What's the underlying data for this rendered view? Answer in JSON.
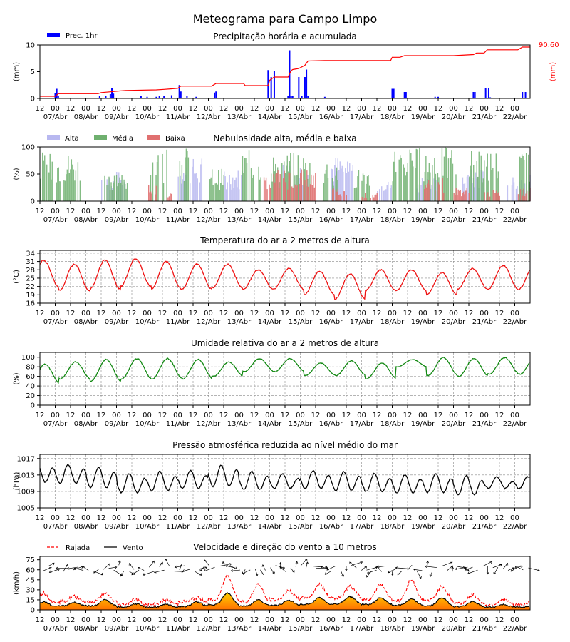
{
  "page": {
    "title": "Meteograma para Campo Limpo"
  },
  "x_axis": {
    "hour_labels": [
      "12",
      "00",
      "12",
      "00",
      "12",
      "00",
      "12",
      "00",
      "12",
      "00",
      "12",
      "00",
      "12",
      "00",
      "12",
      "00",
      "12",
      "00",
      "12",
      "00",
      "12",
      "00",
      "12",
      "00",
      "12",
      "00",
      "12",
      "00",
      "12",
      "00",
      "12",
      "00"
    ],
    "day_labels": [
      "07/Abr",
      "08/Abr",
      "09/Abr",
      "10/Abr",
      "11/Abr",
      "12/Abr",
      "13/Abr",
      "14/Abr",
      "15/Abr",
      "16/Abr",
      "17/Abr",
      "18/Abr",
      "19/Abr",
      "20/Abr",
      "21/Abr",
      "22/Abr"
    ]
  },
  "chart_data": [
    {
      "id": "precip",
      "type": "bar",
      "title": "Precipitação horária e acumulada",
      "ylabel": "(mm)",
      "ylabel_right": "(mm)",
      "ylim": [
        0,
        10
      ],
      "yticks": [
        "0",
        "5",
        "10"
      ],
      "legend": [
        "Prec. 1hr"
      ],
      "accum_final_label": "90.60",
      "colors": {
        "bars": "#0000ff",
        "accum": "#ff0000"
      },
      "hourly_bars": [
        [
          1.0,
          1.0
        ],
        [
          1.1,
          1.8
        ],
        [
          1.2,
          0.5
        ],
        [
          3.9,
          0.4
        ],
        [
          4.3,
          0.5
        ],
        [
          4.6,
          0.8
        ],
        [
          4.7,
          1.9
        ],
        [
          4.8,
          0.9
        ],
        [
          6.6,
          0.4
        ],
        [
          7.0,
          0.3
        ],
        [
          7.6,
          0.3
        ],
        [
          7.8,
          0.5
        ],
        [
          8.1,
          0.4
        ],
        [
          8.6,
          0.6
        ],
        [
          9.1,
          2.5
        ],
        [
          9.2,
          1.3
        ],
        [
          9.6,
          0.4
        ],
        [
          10.2,
          0.3
        ],
        [
          11.4,
          1.1
        ],
        [
          11.5,
          1.3
        ],
        [
          14.9,
          5.3
        ],
        [
          15.1,
          4.0
        ],
        [
          15.3,
          5.2
        ],
        [
          16.2,
          0.5
        ],
        [
          16.3,
          9.0
        ],
        [
          16.4,
          0.4
        ],
        [
          16.5,
          0.4
        ],
        [
          16.9,
          4.0
        ],
        [
          17.1,
          0.4
        ],
        [
          17.3,
          4.0
        ],
        [
          17.4,
          5.4
        ],
        [
          17.5,
          0.4
        ],
        [
          18.6,
          0.3
        ],
        [
          23.0,
          1.8
        ],
        [
          23.1,
          1.8
        ],
        [
          23.8,
          1.2
        ],
        [
          23.9,
          1.2
        ],
        [
          25.8,
          0.3
        ],
        [
          26.0,
          0.3
        ],
        [
          28.3,
          1.2
        ],
        [
          28.4,
          1.2
        ],
        [
          29.1,
          2.0
        ],
        [
          29.3,
          2.0
        ],
        [
          29.4,
          0.2
        ],
        [
          31.5,
          1.2
        ],
        [
          31.7,
          1.2
        ]
      ],
      "accumulated": [
        [
          0,
          0.4
        ],
        [
          1.0,
          0.4
        ],
        [
          1.2,
          0.9
        ],
        [
          3.8,
          0.9
        ],
        [
          4.0,
          1.1
        ],
        [
          4.8,
          1.3
        ],
        [
          5.2,
          1.4
        ],
        [
          5.6,
          1.5
        ],
        [
          7.6,
          1.6
        ],
        [
          8.1,
          1.7
        ],
        [
          8.6,
          1.8
        ],
        [
          9.0,
          1.9
        ],
        [
          9.2,
          2.3
        ],
        [
          11.2,
          2.3
        ],
        [
          11.5,
          2.8
        ],
        [
          13.3,
          2.8
        ],
        [
          13.4,
          2.4
        ],
        [
          14.9,
          2.4
        ],
        [
          15.0,
          3.4
        ],
        [
          15.3,
          4.0
        ],
        [
          16.2,
          4.0
        ],
        [
          16.4,
          5.2
        ],
        [
          16.5,
          5.4
        ],
        [
          16.9,
          5.6
        ],
        [
          17.3,
          6.2
        ],
        [
          17.5,
          7.0
        ],
        [
          18.6,
          7.1
        ],
        [
          20.0,
          7.1
        ],
        [
          22.9,
          7.1
        ],
        [
          23.0,
          7.7
        ],
        [
          23.5,
          7.7
        ],
        [
          23.8,
          8.0
        ],
        [
          25.0,
          8.0
        ],
        [
          27.0,
          8.0
        ],
        [
          28.3,
          8.2
        ],
        [
          28.5,
          8.5
        ],
        [
          29.0,
          8.5
        ],
        [
          29.2,
          9.1
        ],
        [
          31.2,
          9.1
        ],
        [
          31.5,
          9.6
        ],
        [
          32,
          9.6
        ]
      ]
    },
    {
      "id": "clouds",
      "type": "bar",
      "title": "Nebulosidade alta, média e baixa",
      "ylabel": "(%)",
      "ylim": [
        0,
        100
      ],
      "yticks": [
        "0",
        "50",
        "100"
      ],
      "legend": [
        "Alta",
        "Média",
        "Baixa"
      ],
      "colors": {
        "alta": "#b8b8f0",
        "media": "#6fb06f",
        "baixa": "#e07070"
      },
      "high_blocks": [
        [
          4.0,
          5.6,
          55
        ],
        [
          9.0,
          10.6,
          80
        ],
        [
          12.0,
          13.2,
          60
        ],
        [
          15.5,
          17.5,
          75
        ],
        [
          19.0,
          20.5,
          85
        ],
        [
          22.0,
          23.0,
          40
        ],
        [
          24.5,
          26.0,
          45
        ],
        [
          27.5,
          29.0,
          60
        ],
        [
          30.5,
          32.0,
          50
        ]
      ],
      "mid_blocks": [
        [
          0.0,
          2.6,
          90
        ],
        [
          4.2,
          5.8,
          55
        ],
        [
          7.2,
          8.5,
          95
        ],
        [
          9.1,
          9.8,
          100
        ],
        [
          11.0,
          12.0,
          60
        ],
        [
          13.2,
          14.6,
          95
        ],
        [
          15.0,
          17.8,
          90
        ],
        [
          18.5,
          19.5,
          80
        ],
        [
          20.5,
          21.5,
          60
        ],
        [
          23.0,
          27.2,
          100
        ],
        [
          28.0,
          30.0,
          95
        ],
        [
          31.3,
          32.0,
          90
        ]
      ],
      "low_blocks": [
        [
          7.0,
          7.6,
          35
        ],
        [
          8.2,
          8.6,
          15
        ],
        [
          14.6,
          18.0,
          60
        ],
        [
          19.0,
          20.0,
          25
        ],
        [
          21.0,
          22.0,
          15
        ],
        [
          25.0,
          26.4,
          45
        ],
        [
          27.0,
          28.0,
          25
        ],
        [
          29.0,
          30.0,
          20
        ],
        [
          31.2,
          32.0,
          25
        ]
      ]
    },
    {
      "id": "temperature",
      "type": "line",
      "title": "Temperatura do ar a 2 metros de altura",
      "ylabel": "(°C)",
      "ylim": [
        16,
        35
      ],
      "yticks": [
        "16",
        "19",
        "22",
        "25",
        "28",
        "31",
        "34"
      ],
      "color": "#ee1111",
      "daily": [
        [
          31.5,
          21.8
        ],
        [
          30.0,
          20.5
        ],
        [
          31.5,
          21.0
        ],
        [
          32.0,
          22.0
        ],
        [
          31.0,
          21.0
        ],
        [
          30.0,
          21.0
        ],
        [
          30.0,
          21.5
        ],
        [
          28.0,
          21.0
        ],
        [
          28.5,
          21.0
        ],
        [
          27.5,
          19.0
        ],
        [
          26.5,
          17.5
        ],
        [
          28.0,
          20.5
        ],
        [
          28.0,
          20.5
        ],
        [
          27.0,
          19.0
        ],
        [
          28.5,
          21.0
        ],
        [
          29.5,
          21.0
        ]
      ]
    },
    {
      "id": "humidity",
      "type": "line",
      "title": "Umidade relativa do ar a 2 metros de altura",
      "ylabel": "(%)",
      "ylim": [
        0,
        110
      ],
      "yticks": [
        "0",
        "20",
        "40",
        "60",
        "80",
        "100"
      ],
      "color": "#118811",
      "daily": [
        [
          45,
          85
        ],
        [
          55,
          90
        ],
        [
          50,
          95
        ],
        [
          55,
          97
        ],
        [
          55,
          97
        ],
        [
          55,
          95
        ],
        [
          60,
          90
        ],
        [
          70,
          97
        ],
        [
          70,
          97
        ],
        [
          62,
          88
        ],
        [
          62,
          92
        ],
        [
          55,
          88
        ],
        [
          80,
          95
        ],
        [
          62,
          99
        ],
        [
          60,
          97
        ],
        [
          65,
          99
        ]
      ]
    },
    {
      "id": "pressure",
      "type": "line",
      "title": "Pressão atmosférica reduzida ao nível médio do mar",
      "ylabel": "(hPa)",
      "ylim": [
        1005,
        1018
      ],
      "yticks": [
        "1005",
        "1009",
        "1013",
        "1017"
      ],
      "color": "#000000",
      "daily": [
        [
          1016.5,
          1012.0,
          1014.0,
          1010.5
        ],
        [
          1016.0,
          1012.0,
          1014.0,
          1010.0
        ],
        [
          1015.5,
          1011.0,
          1013.0,
          1009.0
        ],
        [
          1013.5,
          1009.5,
          1012.0,
          1008.0
        ],
        [
          1014.0,
          1010.0,
          1012.5,
          1008.5
        ],
        [
          1014.5,
          1010.5,
          1012.5,
          1009.0
        ],
        [
          1016.5,
          1011.0,
          1013.0,
          1009.5
        ],
        [
          1014.0,
          1010.0,
          1012.5,
          1009.0
        ],
        [
          1013.5,
          1010.0,
          1012.0,
          1009.5
        ],
        [
          1014.5,
          1010.5,
          1012.5,
          1009.0
        ],
        [
          1014.0,
          1010.0,
          1012.5,
          1008.5
        ],
        [
          1013.5,
          1009.5,
          1012.0,
          1008.5
        ],
        [
          1013.0,
          1009.0,
          1012.0,
          1008.5
        ],
        [
          1013.5,
          1009.5,
          1012.0,
          1008.0
        ],
        [
          1013.0,
          1009.0,
          1011.5,
          1007.5
        ],
        [
          1012.5,
          1009.5,
          1011.5,
          1010.0
        ]
      ]
    },
    {
      "id": "wind",
      "type": "area",
      "title": "Velocidade e direção do vento a 10 metros",
      "ylabel": "(km/h)",
      "ylim": [
        0,
        80
      ],
      "yticks": [
        "0",
        "15",
        "30",
        "45",
        "60",
        "75"
      ],
      "legend": [
        "Rajada",
        "Vento"
      ],
      "colors": {
        "rajada": "#ff0000",
        "vento": "#000000",
        "fill_top": "#ffd000",
        "fill_bottom": "#ff8000"
      },
      "daily_wind": [
        [
          5,
          12
        ],
        [
          6,
          11
        ],
        [
          6,
          15
        ],
        [
          4,
          9
        ],
        [
          4,
          8
        ],
        [
          5,
          12
        ],
        [
          8,
          25
        ],
        [
          6,
          15
        ],
        [
          7,
          14
        ],
        [
          8,
          18
        ],
        [
          9,
          20
        ],
        [
          8,
          18
        ],
        [
          7,
          16
        ],
        [
          6,
          18
        ],
        [
          5,
          12
        ],
        [
          4,
          8
        ]
      ],
      "daily_gust": [
        [
          10,
          25
        ],
        [
          12,
          20
        ],
        [
          12,
          24
        ],
        [
          8,
          16
        ],
        [
          8,
          15
        ],
        [
          12,
          18
        ],
        [
          15,
          52
        ],
        [
          12,
          38
        ],
        [
          15,
          28
        ],
        [
          18,
          38
        ],
        [
          18,
          35
        ],
        [
          16,
          38
        ],
        [
          14,
          45
        ],
        [
          14,
          35
        ],
        [
          10,
          22
        ],
        [
          8,
          15
        ]
      ]
    }
  ]
}
